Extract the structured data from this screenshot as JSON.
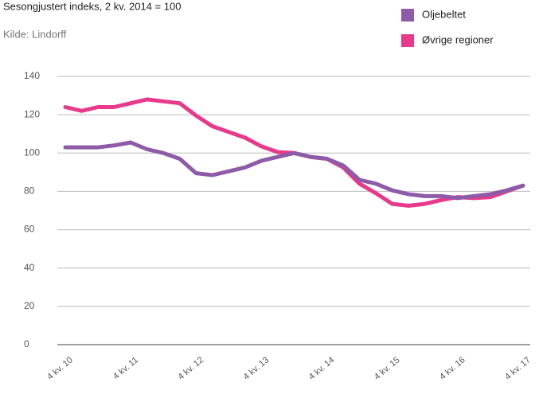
{
  "chart_data": {
    "type": "line",
    "title": "Sesongjustert indeks, 2 kv. 2014 = 100",
    "subtitle": "Kilde: Lindorff",
    "categories": [
      "4 kv. 10",
      null,
      null,
      null,
      "4 kv. 11",
      null,
      null,
      null,
      "4 kv. 12",
      null,
      null,
      null,
      "4 kv. 13",
      null,
      null,
      null,
      "4 kv. 14",
      null,
      null,
      null,
      "4 kv. 15",
      null,
      null,
      null,
      "4 kv. 16",
      null,
      null,
      null,
      "4 kv. 17"
    ],
    "series": [
      {
        "name": "Oljebeltet",
        "color": "#8e5ba8",
        "values": [
          103,
          103,
          103,
          104,
          105.5,
          102,
          100,
          97,
          89.5,
          88.5,
          90.5,
          92.5,
          96,
          98,
          100,
          98,
          97,
          93.5,
          86,
          84,
          80.5,
          78.5,
          77.5,
          77.5,
          76.5,
          77.5,
          78.5,
          80.5,
          83
        ]
      },
      {
        "name": "Øvrige regioner",
        "color": "#e8398a",
        "values": [
          124,
          122,
          124,
          124,
          126,
          128,
          127,
          126,
          119.5,
          114,
          111,
          108,
          103.5,
          100.5,
          100,
          98,
          97,
          92.5,
          84,
          79,
          73.5,
          72.5,
          73.5,
          75.5,
          77,
          76.5,
          77,
          80,
          83
        ]
      }
    ],
    "ylim": [
      0,
      140
    ],
    "yticks": [
      0,
      20,
      40,
      60,
      80,
      100,
      120,
      140
    ],
    "grid": true
  }
}
